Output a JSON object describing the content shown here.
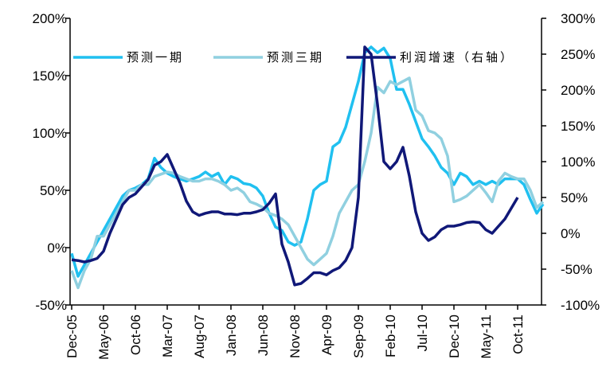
{
  "chart_data": {
    "type": "line",
    "title": "",
    "x_tick_labels": [
      "Dec-05",
      "May-06",
      "Oct-06",
      "Mar-07",
      "Aug-07",
      "Jan-08",
      "Jun-08",
      "Nov-08",
      "Apr-09",
      "Sep-09",
      "Feb-10",
      "Jul-10",
      "Dec-10",
      "May-11",
      "Oct-11"
    ],
    "y_left": {
      "ylim": [
        -50,
        200
      ],
      "step": 50,
      "tick_labels": [
        "-50%",
        "0%",
        "50%",
        "100%",
        "150%",
        "200%"
      ]
    },
    "y_right": {
      "ylim": [
        -100,
        300
      ],
      "step": 50,
      "tick_labels": [
        "-100%",
        "-50%",
        "0%",
        "50%",
        "100%",
        "150%",
        "200%",
        "250%",
        "300%"
      ]
    },
    "legend_position": "top",
    "x_start": "Dec-05",
    "series": [
      {
        "name": "预测一期",
        "axis": "left",
        "color": "#20C0F0",
        "values": [
          -5,
          -25,
          -15,
          -5,
          5,
          15,
          25,
          35,
          45,
          50,
          52,
          55,
          60,
          78,
          70,
          65,
          62,
          60,
          58,
          60,
          62,
          66,
          62,
          65,
          55,
          62,
          60,
          56,
          55,
          52,
          45,
          30,
          18,
          15,
          5,
          2,
          5,
          25,
          50,
          55,
          58,
          88,
          92,
          105,
          125,
          145,
          170,
          175,
          170,
          174,
          165,
          138,
          138,
          125,
          110,
          95,
          88,
          80,
          70,
          65,
          55,
          65,
          62,
          55,
          58,
          55,
          58,
          55,
          60,
          60,
          60,
          55,
          42,
          30,
          38
        ]
      },
      {
        "name": "预测三期",
        "axis": "left",
        "color": "#90D0E0",
        "values": [
          -20,
          -35,
          -20,
          -10,
          10,
          10,
          20,
          30,
          40,
          50,
          50,
          55,
          55,
          62,
          64,
          66,
          65,
          62,
          60,
          58,
          58,
          60,
          60,
          58,
          55,
          50,
          52,
          48,
          40,
          38,
          35,
          30,
          28,
          25,
          20,
          10,
          0,
          -10,
          -15,
          -10,
          -5,
          10,
          30,
          40,
          50,
          55,
          75,
          100,
          140,
          135,
          145,
          142,
          145,
          148,
          120,
          115,
          102,
          100,
          95,
          80,
          40,
          42,
          45,
          50,
          55,
          48,
          40,
          58,
          65,
          62,
          60,
          60,
          50,
          35,
          40
        ]
      },
      {
        "name": "利润增速（右轴）",
        "axis": "right",
        "color": "#101878",
        "values": [
          -37,
          -38,
          -40,
          -38,
          -35,
          -25,
          0,
          20,
          40,
          50,
          55,
          65,
          75,
          95,
          100,
          110,
          90,
          70,
          45,
          30,
          25,
          28,
          30,
          30,
          27,
          27,
          26,
          28,
          28,
          30,
          33,
          42,
          55,
          -15,
          -40,
          -72,
          -70,
          -63,
          -55,
          -55,
          -58,
          -52,
          -48,
          -38,
          -20,
          50,
          260,
          250,
          180,
          100,
          90,
          100,
          120,
          80,
          30,
          0,
          -10,
          -5,
          5,
          10,
          10,
          12,
          15,
          16,
          15,
          5,
          0,
          10,
          20,
          35,
          50
        ]
      }
    ]
  }
}
